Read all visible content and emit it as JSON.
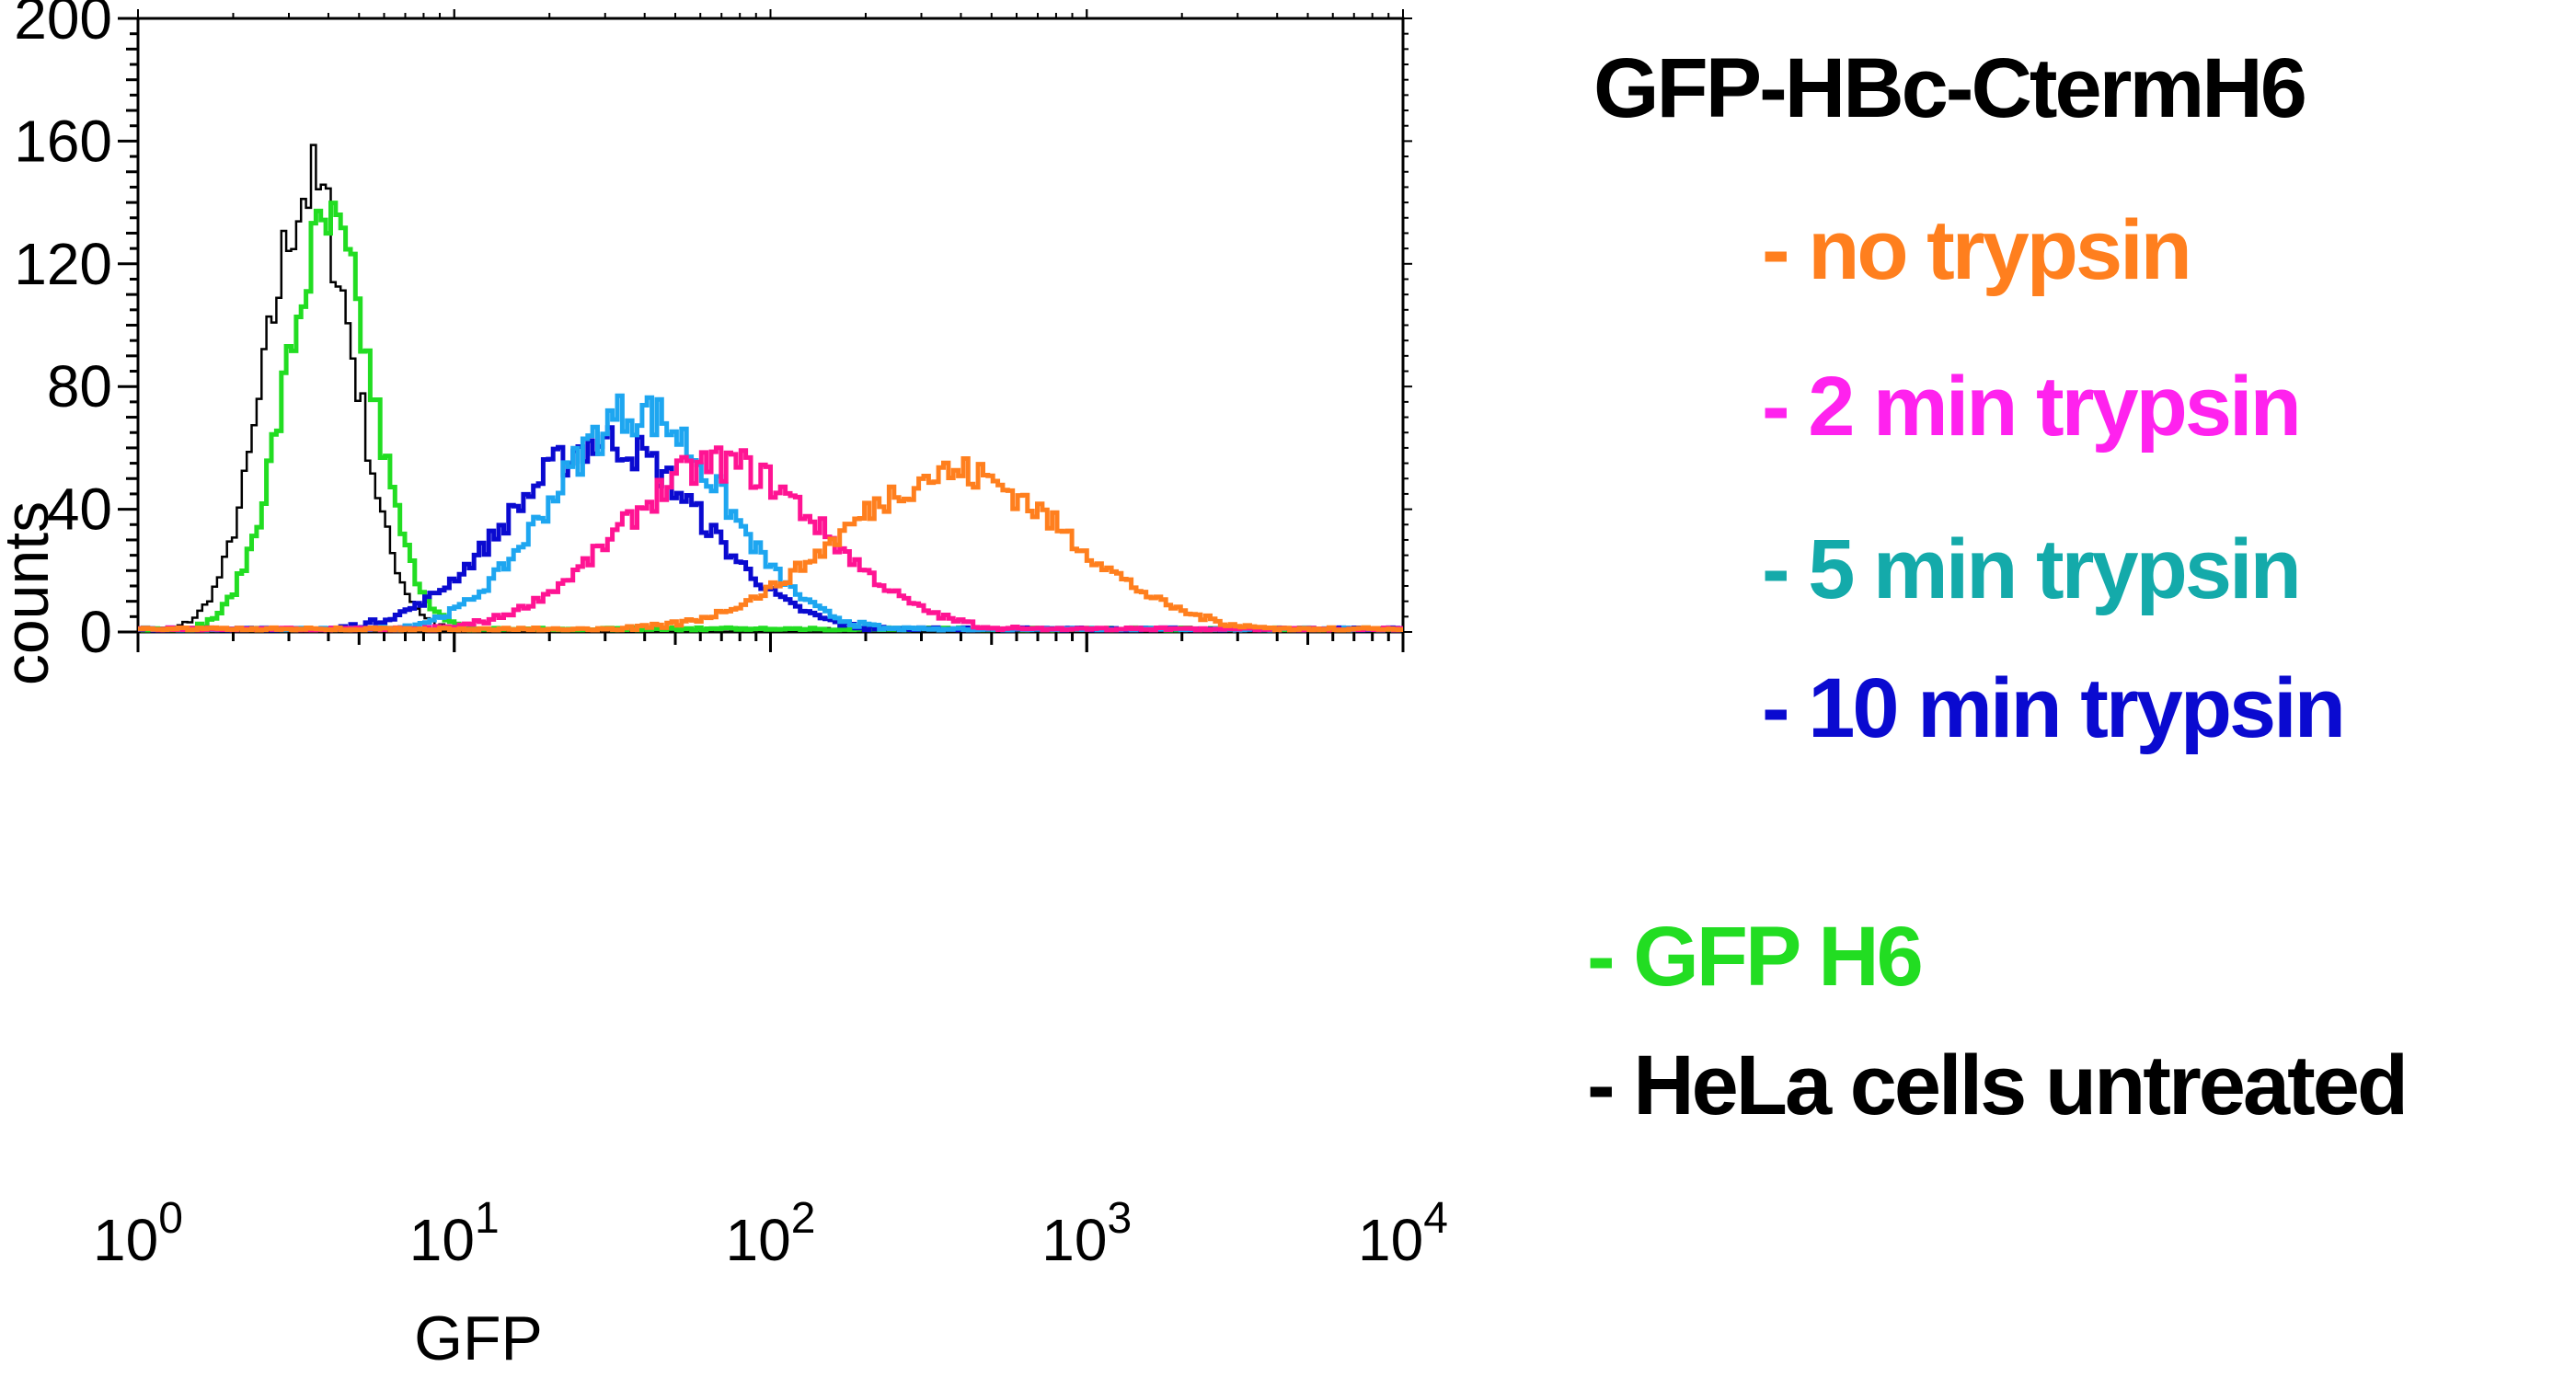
{
  "chart_data": {
    "type": "histogram",
    "title": "GFP-HBc-CtermH6",
    "xlabel": "GFP",
    "ylabel": "counts",
    "x_scale": "log",
    "xlim": [
      1,
      10000
    ],
    "ylim": [
      0,
      200
    ],
    "x_ticks": [
      {
        "value": 1,
        "base": "10",
        "exp": "0"
      },
      {
        "value": 10,
        "base": "10",
        "exp": "1"
      },
      {
        "value": 100,
        "base": "10",
        "exp": "2"
      },
      {
        "value": 1000,
        "base": "10",
        "exp": "3"
      },
      {
        "value": 10000,
        "base": "10",
        "exp": "4"
      }
    ],
    "y_ticks": [
      "0",
      "40",
      "80",
      "120",
      "160",
      "200"
    ],
    "grid": false,
    "legend_position": "right",
    "series": [
      {
        "name": "- HeLa cells untreated",
        "color": "#000000",
        "legend_color": "#000000",
        "peak_x": 3.5,
        "peak_y": 145,
        "sigma_decades": 0.14
      },
      {
        "name": "- GFP H6",
        "color": "#22dd22",
        "legend_color": "#22dd22",
        "peak_x": 4.0,
        "peak_y": 130,
        "sigma_decades": 0.14
      },
      {
        "name": "- 10 min trypsin",
        "color": "#0a0ad0",
        "legend_color": "#0a0ad0",
        "peak_x": 30,
        "peak_y": 62,
        "sigma_decades": 0.3
      },
      {
        "name": "- 5 min trypsin",
        "color": "#1ea6f0",
        "legend_color": "#14aaaa",
        "peak_x": 38,
        "peak_y": 72,
        "sigma_decades": 0.27
      },
      {
        "name": "- 2 min trypsin",
        "color": "#ff1493",
        "legend_color": "#ff22ee",
        "peak_x": 70,
        "peak_y": 55,
        "sigma_decades": 0.32
      },
      {
        "name": "- no trypsin",
        "color": "#ff7f1e",
        "legend_color": "#ff7f1e",
        "peak_x": 380,
        "peak_y": 52,
        "sigma_decades": 0.36
      }
    ],
    "legend_order": [
      5,
      4,
      3,
      2,
      1,
      0
    ]
  }
}
